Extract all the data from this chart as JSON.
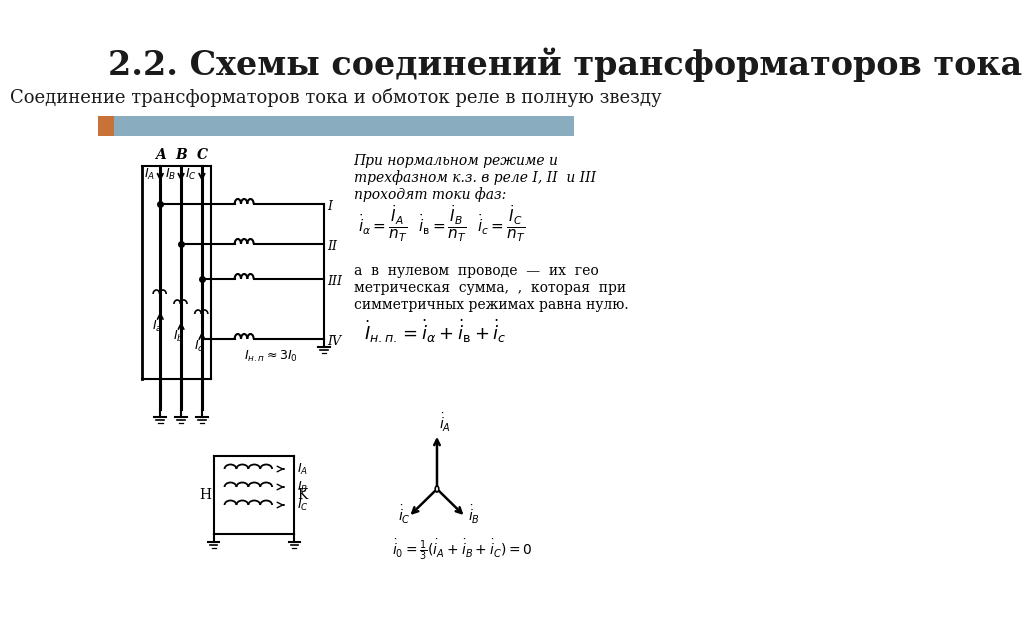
{
  "title": "2.2. Схемы соединений трансформаторов тока",
  "subtitle": "Соединение трансформаторов тока и обмоток реле в полную звезду",
  "bg_color": "#ffffff",
  "header_bar_color": "#8aacbf",
  "header_bar_left_color": "#c8723a",
  "text_color": "#1a1a1a",
  "title_fontsize": 24,
  "subtitle_fontsize": 13
}
